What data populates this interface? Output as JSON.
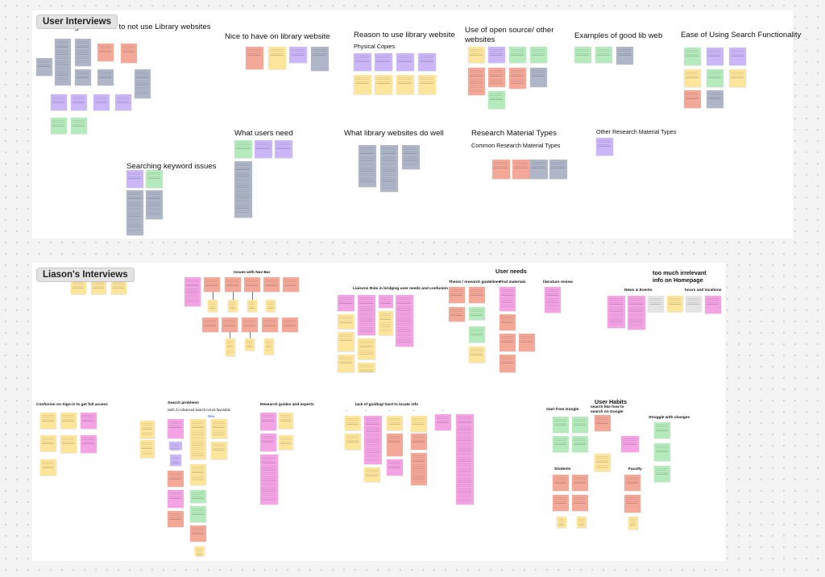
{
  "colors": {
    "yellow": "#fde59b",
    "salmon": "#f3a898",
    "purple": "#cbb6f7",
    "green": "#b5ebbc",
    "slate": "#aeb6c8",
    "pink": "#f4a3e4",
    "orange": "#f19b7d",
    "grey": "#e4e4e4"
  },
  "sections": {
    "user_interviews": {
      "badge": "User Interviews",
      "headings": {
        "challenges": "Challenges/reasons to not use Library websites",
        "nice": "Nice to have on library website",
        "reason": "Reason to use library website",
        "physical": "Physical Copies",
        "open_source": "Use of open source/ other websites",
        "examples": "Examples of good lib web",
        "ease": "Ease of Using Search Functionality",
        "needs": "What users need",
        "well": "What library websites do well",
        "research_types": "Research Material Types",
        "common_types": "Common Research Material Types",
        "other_types": "Other Research Material Types",
        "keyword": "Searching keyword issues"
      }
    },
    "liasons_interviews": {
      "badge": "Liason's Interviews",
      "headings": {
        "nav": "Issues with Nav Bar",
        "user_needs": "User needs",
        "liaison_role": "Liaisons Role in bridging user needs and confusion",
        "thesis": "Thesis / research guidelines",
        "find": "Find materials",
        "literature": "literature review",
        "irrelevant": "too much irrelevant info on Homepage",
        "news": "News & Events",
        "hours": "hours and locations",
        "signin": "Confusion on Sign-in to get full access",
        "search_problems": "Search problems",
        "search_sub": "(with 2) Advanced search not as favorable",
        "new": "New",
        "guides": "Research guides and experts",
        "lack": "lack of guiding/ hard to locate info",
        "habits": "User Habits",
        "start_google": "start from Google",
        "search_like": "search like how to search on Google",
        "struggle": "Struggle with changes",
        "students": "Students",
        "faculty": "Faculty"
      }
    }
  }
}
